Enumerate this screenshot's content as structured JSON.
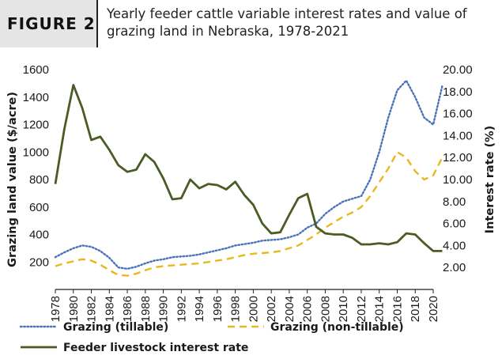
{
  "figure": {
    "label": "FIGURE 2",
    "title": "Yearly feeder cattle variable interest rates and value of grazing land in Nebraska, 1978-2021"
  },
  "chart_data": {
    "type": "line",
    "title": "",
    "xlabel": "",
    "ylabel_left": "Grazing land value ($/acre)",
    "ylabel_right": "Interest rate (%)",
    "ylim_left": [
      0,
      1600
    ],
    "ylim_right": [
      0,
      20
    ],
    "xlim": [
      1978,
      2020
    ],
    "x_ticks": [
      1978,
      1980,
      1982,
      1984,
      1986,
      1988,
      1990,
      1992,
      1994,
      1996,
      1998,
      2000,
      2002,
      2004,
      2006,
      2008,
      2010,
      2012,
      2014,
      2016,
      2018,
      2020
    ],
    "y_left_ticks": [
      200,
      400,
      600,
      800,
      1000,
      1200,
      1400,
      1600
    ],
    "y_right_ticks": [
      "2.00",
      "4.00",
      "6.00",
      "8.00",
      "10.00",
      "12.00",
      "14.00",
      "16.00",
      "18.00",
      "20.00"
    ],
    "grid": false,
    "legend_position": "bottom",
    "x": [
      1978,
      1979,
      1980,
      1981,
      1982,
      1983,
      1984,
      1985,
      1986,
      1987,
      1988,
      1989,
      1990,
      1991,
      1992,
      1993,
      1994,
      1995,
      1996,
      1997,
      1998,
      1999,
      2000,
      2001,
      2002,
      2003,
      2004,
      2005,
      2006,
      2007,
      2008,
      2009,
      2010,
      2011,
      2012,
      2013,
      2014,
      2015,
      2016,
      2017,
      2018,
      2019,
      2020,
      2021
    ],
    "series": [
      {
        "name": "Grazing (tillable)",
        "axis": "left",
        "style": "dotted",
        "color": "#4a72b8",
        "values": [
          235,
          270,
          300,
          320,
          310,
          280,
          230,
          160,
          150,
          165,
          190,
          210,
          220,
          235,
          240,
          245,
          255,
          270,
          285,
          300,
          320,
          330,
          340,
          355,
          360,
          365,
          380,
          400,
          450,
          480,
          550,
          600,
          640,
          660,
          680,
          800,
          1000,
          1250,
          1450,
          1520,
          1400,
          1250,
          1200,
          1480
        ]
      },
      {
        "name": "Grazing (non-tillable)",
        "axis": "left",
        "style": "dashed",
        "color": "#e8b820",
        "values": [
          170,
          190,
          205,
          220,
          210,
          180,
          140,
          105,
          100,
          115,
          140,
          160,
          170,
          175,
          180,
          185,
          190,
          200,
          210,
          220,
          235,
          250,
          260,
          265,
          270,
          280,
          300,
          320,
          360,
          400,
          450,
          490,
          530,
          560,
          600,
          680,
          780,
          880,
          1000,
          960,
          860,
          800,
          830,
          960
        ]
      },
      {
        "name": "Feeder livestock interest rate",
        "axis": "right",
        "style": "solid",
        "color": "#4a5c24",
        "values": [
          9.6,
          14.6,
          18.6,
          16.5,
          13.6,
          13.9,
          12.7,
          11.3,
          10.7,
          10.9,
          12.3,
          11.6,
          10.1,
          8.2,
          8.3,
          10.0,
          9.2,
          9.6,
          9.5,
          9.1,
          9.8,
          8.6,
          7.7,
          6.0,
          5.1,
          5.2,
          6.8,
          8.3,
          8.7,
          5.7,
          5.1,
          5.0,
          5.0,
          4.7,
          4.1,
          4.1,
          4.2,
          4.1,
          4.3,
          5.1,
          5.0,
          4.2,
          3.5,
          3.5
        ]
      }
    ]
  }
}
